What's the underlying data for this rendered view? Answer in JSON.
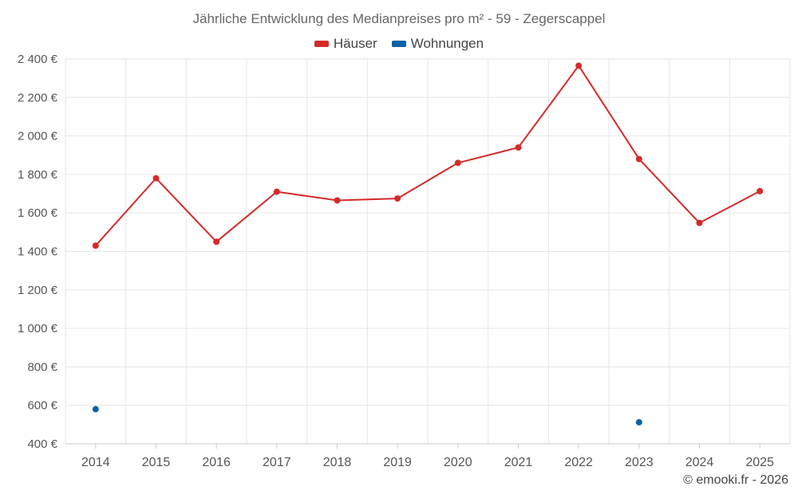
{
  "colors": {
    "haeuser": "#d42a2a",
    "wohnungen": "#0a60a8",
    "grid": "#e6e6e6",
    "axis": "#cccccc"
  },
  "credit": "© emooki.fr - 2026",
  "chart_data": {
    "type": "line",
    "title": "Jährliche Entwicklung des Medianpreises pro m² - 59 - Zegerscappel",
    "xlabel": "",
    "ylabel": "",
    "categories": [
      "2014",
      "2015",
      "2016",
      "2017",
      "2018",
      "2019",
      "2020",
      "2021",
      "2022",
      "2023",
      "2024",
      "2025"
    ],
    "ylim": [
      400,
      2400
    ],
    "yticks": [
      400,
      600,
      800,
      1000,
      1200,
      1400,
      1600,
      1800,
      2000,
      2200,
      2400
    ],
    "ytick_labels": [
      "400 €",
      "600 €",
      "800 €",
      "1 000 €",
      "1 200 €",
      "1 400 €",
      "1 600 €",
      "1 800 €",
      "2 000 €",
      "2 200 €",
      "2 400 €"
    ],
    "legend_position": "top-center",
    "series": [
      {
        "name": "Häuser",
        "color": "#d42a2a",
        "values": [
          1430,
          1780,
          1450,
          1710,
          1665,
          1675,
          1860,
          1940,
          2365,
          1880,
          1548,
          1713
        ]
      },
      {
        "name": "Wohnungen",
        "color": "#0a60a8",
        "values": [
          580,
          null,
          null,
          null,
          null,
          null,
          null,
          null,
          null,
          512,
          null,
          null
        ]
      }
    ]
  }
}
